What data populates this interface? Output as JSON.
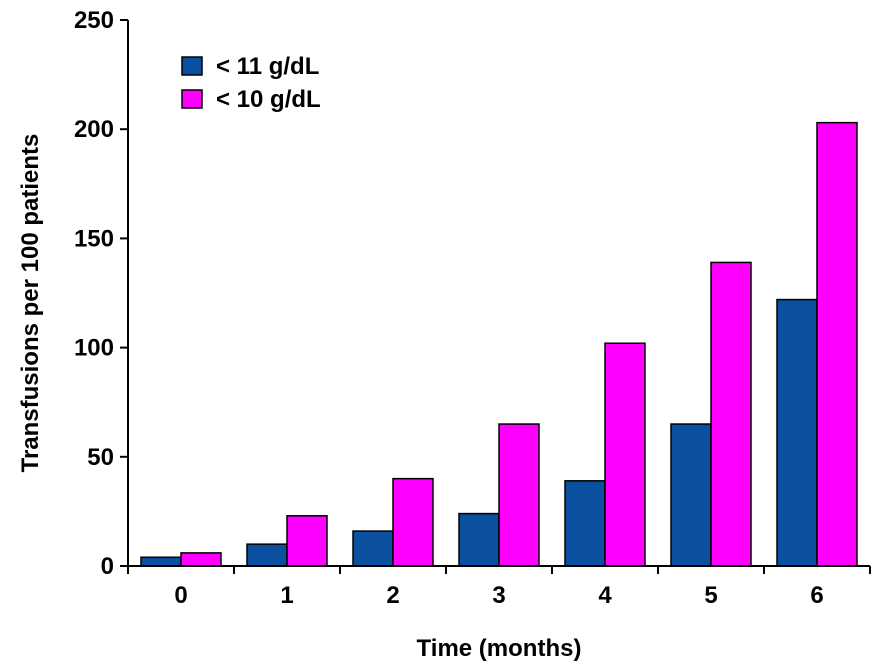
{
  "chart_data": {
    "type": "bar",
    "title": "",
    "xlabel": "Time (months)",
    "ylabel": "Transfusions per 100 patients",
    "categories": [
      "0",
      "1",
      "2",
      "3",
      "4",
      "5",
      "6"
    ],
    "series": [
      {
        "name": "< 11 g/dL",
        "color": "#0A4FA0",
        "values": [
          4,
          10,
          16,
          24,
          39,
          65,
          122
        ]
      },
      {
        "name": "< 10 g/dL",
        "color": "#FF00FF",
        "values": [
          6,
          23,
          40,
          65,
          102,
          139,
          203
        ]
      }
    ],
    "ylim": [
      0,
      250
    ],
    "yticks": [
      "0",
      "50",
      "100",
      "150",
      "200",
      "250"
    ],
    "grid": false,
    "legend_position": "top-left"
  }
}
